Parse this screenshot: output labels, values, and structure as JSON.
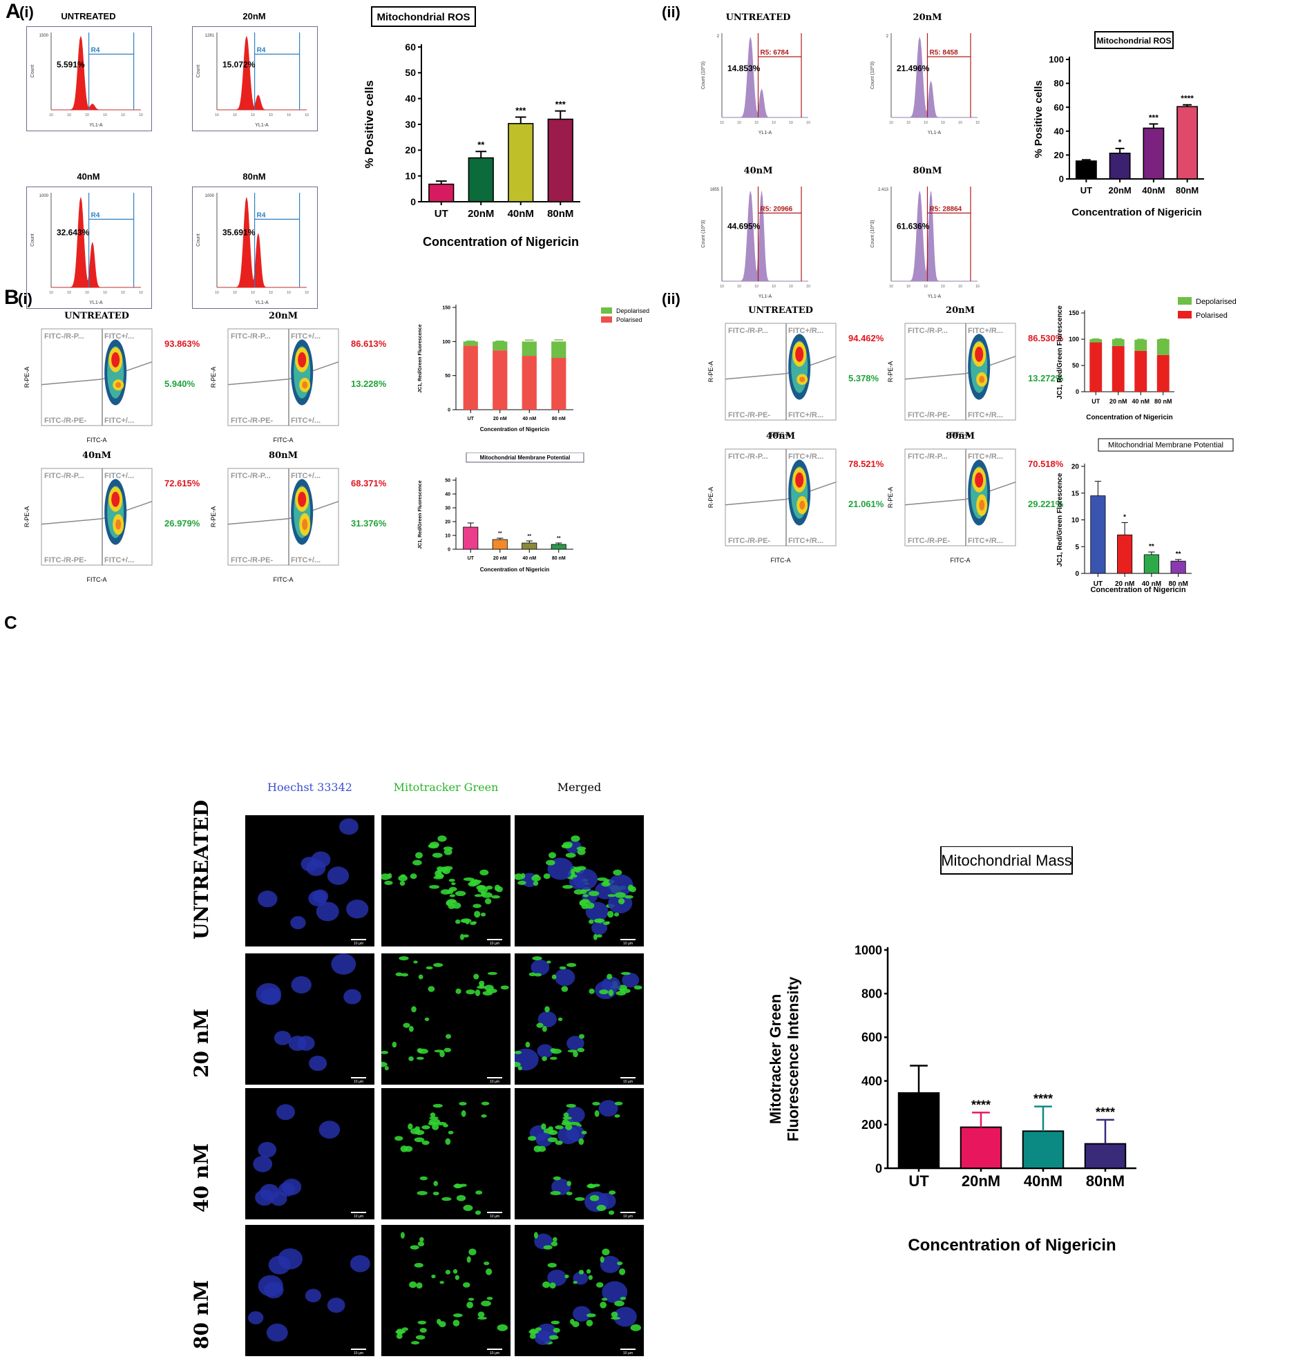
{
  "panel_labels": {
    "A": "A",
    "A_i": "(i)",
    "A_ii": "(ii)",
    "B": "B",
    "B_i": "(i)",
    "B_ii": "(ii)",
    "C": "C"
  },
  "histA1": {
    "panels": [
      {
        "title": "UNTREATED",
        "pct": "5.591%",
        "gate": "R4",
        "ymax": "1500",
        "peak2": 0.08
      },
      {
        "title": "20nM",
        "pct": "15.072%",
        "gate": "R4",
        "ymax": "1281",
        "peak2": 0.2
      },
      {
        "title": "40nM",
        "pct": "32.643%",
        "gate": "R4",
        "ymax": "1000",
        "peak2": 0.5
      },
      {
        "title": "80nM",
        "pct": "35.691%",
        "gate": "R4",
        "ymax": "1000",
        "peak2": 0.6
      }
    ],
    "ylabel": "Count",
    "xlabel": "YL1-A",
    "color": "#e8211f"
  },
  "histA2": {
    "panels": [
      {
        "title": "UNTREATED",
        "pct": "14.853%",
        "gate": "R5: 6784",
        "ymax": "2",
        "peak2": 0.35
      },
      {
        "title": "20nM",
        "pct": "21.496%",
        "gate": "R5: 8458",
        "ymax": "2",
        "peak2": 0.45
      },
      {
        "title": "40nM",
        "pct": "44.695%",
        "gate": "R5: 20966",
        "ymax": "1855",
        "peak2": 1.0
      },
      {
        "title": "80nM",
        "pct": "61.636%",
        "gate": "R5: 28864",
        "ymax": "2.413",
        "peak2": 1.0
      }
    ],
    "ylabel": "Count (10^3)",
    "xlabel": "YL1-A",
    "color": "#a98bc6"
  },
  "dotB1": {
    "panels": [
      {
        "title": "UNTREATED",
        "red": "93.863%",
        "green": "5.940%"
      },
      {
        "title": "20nM",
        "red": "86.613%",
        "green": "13.228%"
      },
      {
        "title": "40nM",
        "red": "72.615%",
        "green": "26.979%"
      },
      {
        "title": "80nM",
        "red": "68.371%",
        "green": "31.376%"
      }
    ],
    "quadrants": [
      "FITC-/R-P...",
      "FITC+/...",
      "FITC-/R-PE-",
      "FITC+/..."
    ],
    "quadrants_80nM": [
      "FITC-/R-P...",
      "FITC+/...",
      "FITC-/R-PE-",
      "FITC+/..."
    ],
    "ylabel": "R-PE-A",
    "xlabel": "FITC-A"
  },
  "dotB2": {
    "panels": [
      {
        "title": "UNTREATED",
        "red": "94.462%",
        "green": "5.378%"
      },
      {
        "title": "20nM",
        "red": "86.530%",
        "green": "13.272%"
      },
      {
        "title": "40nM",
        "red": "78.521%",
        "green": "21.061%"
      },
      {
        "title": "80nM",
        "red": "70.518%",
        "green": "29.221%"
      }
    ],
    "quadrants": [
      "FITC-/R-P...",
      "FITC+/R...",
      "FITC-/R-PE-",
      "FITC+/R..."
    ],
    "quadrants_80nM": [
      "FITC-/R-P...",
      "FITC+/R...",
      "FITC-/R-PE-",
      "FITC+/R..."
    ],
    "ylabel": "R-PE-A",
    "xlabel": "FITC-A"
  },
  "microscopy": {
    "col_titles": [
      "Hoechst 33342",
      "Mitotracker Green",
      "Merged"
    ],
    "col_colors": [
      "#3a4fd6",
      "#2bb52b",
      "#000000"
    ],
    "row_labels": [
      "UNTREATED",
      "20 nM",
      "40 nM",
      "80 nM"
    ],
    "scale_bar": "10 µm"
  },
  "chart_data": [
    {
      "id": "A_i_bar",
      "type": "bar",
      "title": "Mitochondrial ROS",
      "categories": [
        "UT",
        "20nM",
        "40nM",
        "80nM"
      ],
      "values": [
        6.8,
        17.0,
        30.3,
        32.0
      ],
      "errors": [
        1.2,
        2.5,
        2.5,
        3.2
      ],
      "significance": [
        "",
        "**",
        "***",
        "***"
      ],
      "colors": [
        "#d81b60",
        "#0b6b3a",
        "#bfbf2a",
        "#9b1b4b"
      ],
      "ylabel": "% Positive cells",
      "xlabel": "Concentration of Nigericin",
      "ylim": [
        0,
        60
      ],
      "yticks": [
        0,
        10,
        20,
        30,
        40,
        50,
        60
      ]
    },
    {
      "id": "A_ii_bar",
      "type": "bar",
      "title": "Mitochondrial ROS",
      "categories": [
        "UT",
        "20nM",
        "40nM",
        "80nM"
      ],
      "values": [
        15.0,
        21.5,
        42.5,
        60.5
      ],
      "errors": [
        1.0,
        4.0,
        3.5,
        1.5
      ],
      "significance": [
        "",
        "*",
        "***",
        "****"
      ],
      "colors": [
        "#000000",
        "#3b2170",
        "#7b2180",
        "#e04a6a"
      ],
      "ylabel": "% Positive cells",
      "xlabel": "Concentration of Nigericin",
      "ylim": [
        0,
        100
      ],
      "yticks": [
        0,
        20,
        40,
        60,
        80,
        100
      ]
    },
    {
      "id": "B_i_stacked",
      "type": "bar",
      "stacked": true,
      "title": "",
      "categories": [
        "UT",
        "20 nM",
        "40 nM",
        "80 nM"
      ],
      "series": [
        {
          "name": "Polarised",
          "values": [
            94,
            87,
            79,
            76
          ],
          "color": "#f0504a"
        },
        {
          "name": "Depolarised",
          "values": [
            6,
            13,
            21,
            24
          ],
          "color": "#6dbf45"
        }
      ],
      "errors": [
        2,
        2,
        7,
        8
      ],
      "ylabel": "JC1, Red/Green Fluorescence",
      "xlabel": "Concentration of Nigericin",
      "ylim": [
        0,
        150
      ],
      "yticks": [
        0,
        50,
        100,
        150
      ]
    },
    {
      "id": "B_i_bar",
      "type": "bar",
      "title": "Mitochondrial Membrane Potential",
      "categories": [
        "UT",
        "20 nM",
        "40 nM",
        "80 nM"
      ],
      "values": [
        16.0,
        7.0,
        4.5,
        3.5
      ],
      "errors": [
        3.0,
        1.0,
        1.5,
        1.0
      ],
      "significance": [
        "",
        "**",
        "**",
        "**"
      ],
      "colors": [
        "#ec3d8c",
        "#f28a2a",
        "#8a8a3a",
        "#2a9a4a"
      ],
      "ylabel": "JC1, Red/Green Fluorescence",
      "xlabel": "Concentration of Nigericin",
      "ylim": [
        0,
        50
      ],
      "yticks": [
        0,
        10,
        20,
        30,
        40,
        50
      ]
    },
    {
      "id": "B_ii_stacked",
      "type": "bar",
      "stacked": true,
      "title": "",
      "categories": [
        "UT",
        "20 nM",
        "40 nM",
        "80 nM"
      ],
      "series": [
        {
          "name": "Polarised",
          "values": [
            94,
            87,
            78,
            70
          ],
          "color": "#e8211f"
        },
        {
          "name": "Depolarised",
          "values": [
            6,
            13,
            21,
            30
          ],
          "color": "#6dbf45"
        }
      ],
      "errors": [
        2,
        3,
        3,
        1
      ],
      "ylabel": "JC1, Red/Green Florescence",
      "xlabel": "Concentration of Nigericin",
      "ylim": [
        0,
        150
      ],
      "yticks": [
        0,
        50,
        100,
        150
      ]
    },
    {
      "id": "B_ii_bar",
      "type": "bar",
      "title": "Mitochondrial Membrane Potential",
      "categories": [
        "UT",
        "20 nM",
        "40 nM",
        "80 nM"
      ],
      "values": [
        14.5,
        7.2,
        3.5,
        2.3
      ],
      "errors": [
        2.7,
        2.3,
        0.5,
        0.3
      ],
      "significance": [
        "",
        "*",
        "**",
        "**"
      ],
      "colors": [
        "#3a55b0",
        "#e8211f",
        "#2eaa4a",
        "#8a3ab0"
      ],
      "ylabel": "JC1, Red/Green Florescence",
      "xlabel": "Concentration of Nigericin",
      "ylim": [
        0,
        20
      ],
      "yticks": [
        0,
        5,
        10,
        15,
        20
      ]
    },
    {
      "id": "C_bar",
      "type": "bar",
      "title": "Mitochondrial Mass",
      "categories": [
        "UT",
        "20nM",
        "40nM",
        "80nM"
      ],
      "values": [
        345,
        188,
        170,
        112
      ],
      "errors": [
        125,
        67,
        113,
        110
      ],
      "significance": [
        "",
        "****",
        "****",
        "****"
      ],
      "colors": [
        "#000000",
        "#e8175d",
        "#0b8a84",
        "#3a2a7a"
      ],
      "ylabel": [
        "Mitotracker Green",
        "Fluorescence Intensity"
      ],
      "xlabel": "Concentration of Nigericin",
      "ylim": [
        0,
        1000
      ],
      "yticks": [
        0,
        200,
        400,
        600,
        800,
        1000
      ]
    }
  ]
}
